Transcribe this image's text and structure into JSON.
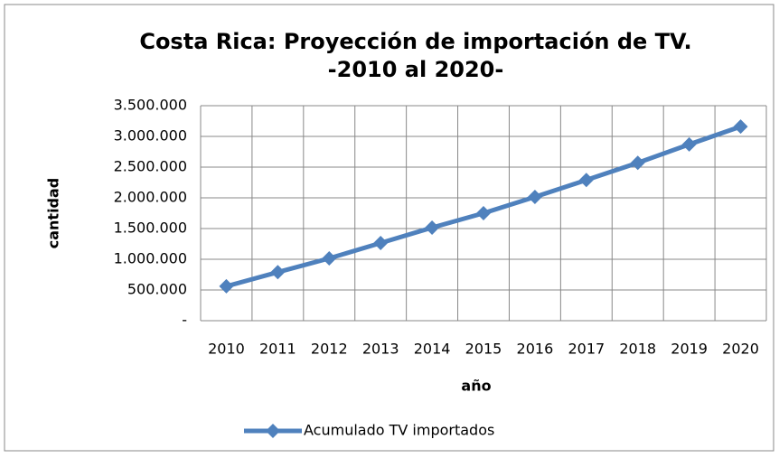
{
  "chart_data": {
    "type": "line",
    "title": "Costa Rica: Proyección de importación de TV.",
    "subtitle": "-2010 al 2020-",
    "x_label": "año",
    "y_label": "cantidad",
    "categories": [
      "2010",
      "2011",
      "2012",
      "2013",
      "2014",
      "2015",
      "2016",
      "2017",
      "2018",
      "2019",
      "2020"
    ],
    "series": [
      {
        "name": "Acumulado TV importados",
        "color": "#4f81bd",
        "values": [
          560000,
          790000,
          1015000,
          1265000,
          1515000,
          1750000,
          2015000,
          2290000,
          2570000,
          2870000,
          3160000
        ]
      }
    ],
    "ylim": [
      0,
      3500000
    ],
    "yticks": [
      {
        "value": 0,
        "label": "-"
      },
      {
        "value": 500000,
        "label": "500.000"
      },
      {
        "value": 1000000,
        "label": "1.000.000"
      },
      {
        "value": 1500000,
        "label": "1.500.000"
      },
      {
        "value": 2000000,
        "label": "2.000.000"
      },
      {
        "value": 2500000,
        "label": "2.500.000"
      },
      {
        "value": 3000000,
        "label": "3.000.000"
      },
      {
        "value": 3500000,
        "label": "3.500.000"
      }
    ],
    "grid": true,
    "legend": "bottom"
  }
}
